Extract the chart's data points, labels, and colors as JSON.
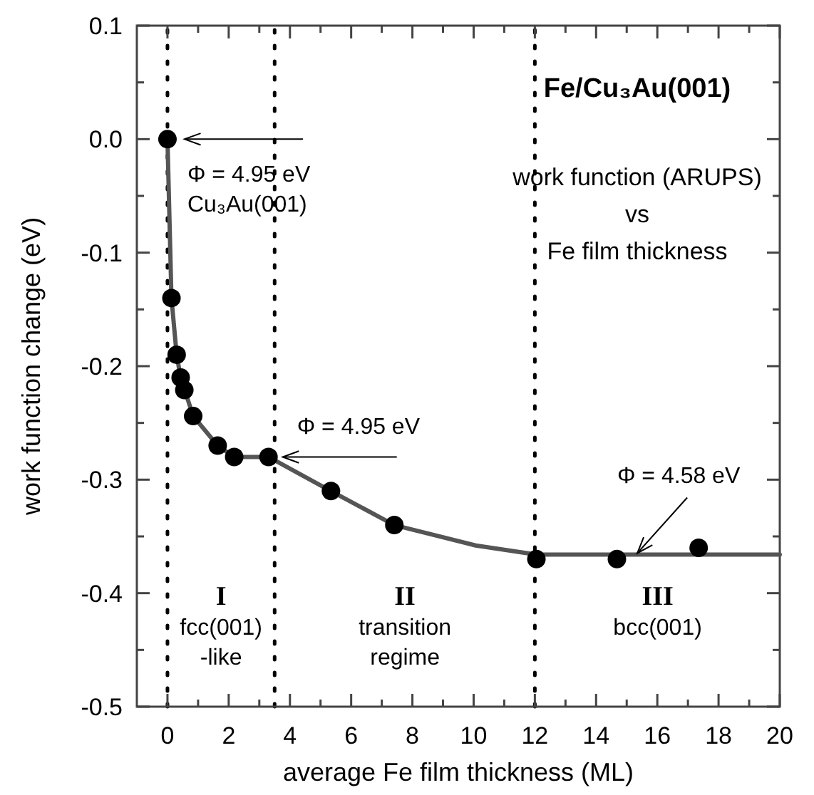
{
  "chart_data": {
    "type": "scatter",
    "title": "Fe/Cu₃Au(001)",
    "subtitle": "work function (ARUPS)\nvs\nFe film thickness",
    "xlabel": "average Fe film thickness (ML)",
    "ylabel": "work function change (eV)",
    "xlim": [
      -1,
      20
    ],
    "xticks": [
      0,
      {
        "value": 1,
        "label": null
      },
      2,
      {
        "value": 3,
        "label": null
      },
      4,
      {
        "value": 5,
        "label": null
      },
      6,
      {
        "value": 7,
        "label": null
      },
      8,
      {
        "value": 9,
        "label": null
      },
      10,
      {
        "value": 11,
        "label": null
      },
      12,
      {
        "value": 13,
        "label": null
      },
      14,
      {
        "value": 15,
        "label": null
      },
      16,
      {
        "value": 17,
        "label": null
      },
      18,
      {
        "value": 19,
        "label": null
      },
      20
    ],
    "ylim": [
      -0.5,
      0.1
    ],
    "yticks": [
      0.1,
      {
        "value": 0.05,
        "label": null
      },
      {
        "value": 0,
        "label": "0.0"
      },
      {
        "value": -0.05,
        "label": null
      },
      -0.1,
      {
        "value": -0.15,
        "label": null
      },
      -0.2,
      {
        "value": -0.25,
        "label": null
      },
      -0.3,
      {
        "value": -0.35,
        "label": null
      },
      -0.4,
      {
        "value": -0.45,
        "label": null
      },
      -0.5
    ],
    "series": [
      {
        "type": "line",
        "color": "#555555",
        "marker": "none",
        "line_style": "solid",
        "x": [
          0,
          0.13,
          0.3,
          0.43,
          0.55,
          0.84,
          1.64,
          2.18,
          3.3,
          5.34,
          7.41,
          10.07,
          12.05,
          20
        ],
        "values": [
          0,
          -0.14,
          -0.19,
          -0.21,
          -0.22,
          -0.244,
          -0.27,
          -0.28,
          -0.28,
          -0.31,
          -0.34,
          -0.358,
          -0.366,
          -0.366
        ]
      },
      {
        "color": "#000000",
        "marker": "circle",
        "x": [
          0,
          0.13,
          0.3,
          0.43,
          0.55,
          0.84,
          1.64,
          2.18,
          3.3,
          5.34,
          7.41,
          12.05,
          14.68,
          17.35
        ],
        "values": [
          0,
          -0.14,
          -0.19,
          -0.21,
          -0.221,
          -0.244,
          -0.27,
          -0.28,
          -0.28,
          -0.31,
          -0.34,
          -0.37,
          -0.37,
          -0.36
        ]
      }
    ],
    "ref_lines": [
      {
        "axis": "x",
        "value": 0,
        "color": "#000000",
        "line_style": "dotted"
      },
      {
        "axis": "x",
        "value": 3.5,
        "color": "#000000",
        "line_style": "dotted"
      },
      {
        "axis": "x",
        "value": 12,
        "color": "#000000",
        "line_style": "dotted"
      }
    ],
    "annotations": [
      {
        "text": "Φ = 4.95 eV\nCu₃Au(001)",
        "x": 0,
        "y": 0
      },
      {
        "text": "Φ = 4.95 eV",
        "x": 3.3,
        "y": -0.28
      },
      {
        "text": "Φ = 4.58 eV",
        "x": 15.3,
        "y": -0.366
      },
      "I\nfcc(001)\n-like",
      "II\ntransition\nregime",
      "III\nbcc(001)"
    ],
    "grid": false
  }
}
